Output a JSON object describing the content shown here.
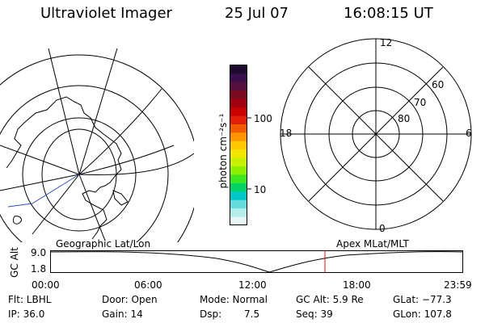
{
  "header": {
    "instrument": "Ultraviolet Imager",
    "date": "25 Jul 07",
    "time": "16:08:15 UT"
  },
  "colorbar": {
    "unit_label": "photon cm⁻²s⁻¹",
    "ticks": [
      "100",
      "10"
    ],
    "colors": [
      "#1e0a2e",
      "#3a0d4c",
      "#55103f",
      "#7a0a1e",
      "#a00010",
      "#c80000",
      "#e01e0a",
      "#f05a00",
      "#ff9600",
      "#ffc800",
      "#f0e600",
      "#c8f000",
      "#8cf000",
      "#3ce61e",
      "#00d264",
      "#00c8c8",
      "#64dcdc",
      "#b4ecec",
      "#e6f6f6"
    ]
  },
  "left_map": {
    "name": "geographic-map"
  },
  "right_polar": {
    "labels": {
      "top": "12",
      "bottom": "0",
      "left": "18",
      "right": "6",
      "lat60": "60",
      "lat70": "70",
      "lat80": "80"
    }
  },
  "timeline": {
    "y_axis_label": "GC Alt",
    "y_max": "9.0",
    "y_min": "1.8",
    "left_title": "Geographic Lat/Lon",
    "right_title": "Apex MLat/MLT",
    "x_ticks": [
      "00:00",
      "06:00",
      "12:00",
      "18:00",
      "23:59"
    ],
    "current_marker_color": "#d01010"
  },
  "status": {
    "flt": "Flt: LBHL",
    "ip": "IP: 36.0",
    "door": "Door: Open",
    "gain": "Gain: 14",
    "mode": "Mode: Normal",
    "dsp_label": "Dsp:",
    "dsp_value": "7.5",
    "gc_alt": "GC Alt: 5.9 Re",
    "seq": "Seq: 39",
    "glat": "GLat: −77.3",
    "glon": "GLon: 107.8"
  }
}
